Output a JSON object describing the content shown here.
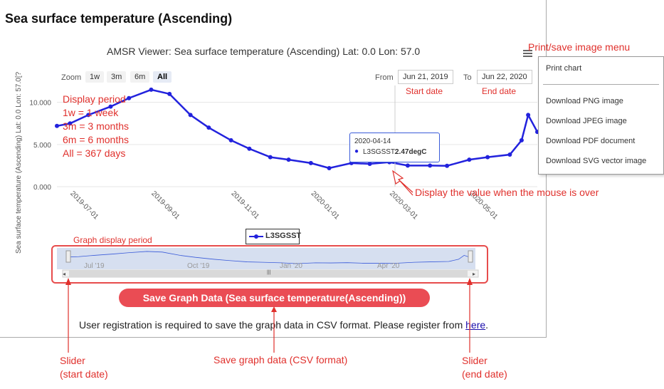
{
  "page": {
    "title": "Sea surface temperature (Ascending)"
  },
  "chart_header": {
    "title": "AMSR Viewer: Sea surface temperature (Ascending) Lat: 0.0 Lon: 57.0",
    "ylabel": "Sea surface temperature (Ascending) Lat: 0.0 Lon: 57.0[?"
  },
  "zoom": {
    "label": "Zoom",
    "buttons": [
      "1w",
      "3m",
      "6m",
      "All"
    ],
    "active": "All"
  },
  "range": {
    "from_label": "From",
    "from_value": "Jun 21, 2019",
    "to_label": "To",
    "to_value": "Jun 22, 2020"
  },
  "menu": {
    "items": [
      "Print chart",
      "Download PNG image",
      "Download JPEG image",
      "Download PDF document",
      "Download SVG vector image"
    ]
  },
  "tooltip": {
    "date": "2020-04-14",
    "series": "L3SGSST:",
    "value": "2.47degC"
  },
  "legend": {
    "series_name": "L3SGSST"
  },
  "navigator": {
    "labels": [
      "Jul '19",
      "Oct '19",
      "Jan '20",
      "Apr '20"
    ],
    "scroll_grip": "|||"
  },
  "save_button": {
    "label": "Save Graph Data (Sea surface temperature(Ascending))"
  },
  "registration": {
    "text": "User registration is required to save the graph data in CSV format. Please register from ",
    "link": "here",
    "suffix": "."
  },
  "annotations": {
    "menu": "Print/save image menu",
    "start_date": "Start date",
    "end_date": "End date",
    "period_lines": [
      "Display period",
      "1w = 1 week",
      "3m = 3 months",
      "6m = 6 months",
      "All = 367 days"
    ],
    "mouse_over": "Display the value when the mouse is over",
    "graph_period": "Graph display period",
    "slider_start_1": "Slider",
    "slider_start_2": "(start date)",
    "save_csv": "Save graph data (CSV format)",
    "slider_end_1": "Slider",
    "slider_end_2": "(end date)"
  },
  "chart_data": {
    "type": "line",
    "series": [
      {
        "name": "L3SGSST",
        "x": [
          "2019-06-21",
          "2019-07-01",
          "2019-07-15",
          "2019-08-01",
          "2019-08-15",
          "2019-09-01",
          "2019-09-15",
          "2019-10-01",
          "2019-10-15",
          "2019-11-01",
          "2019-11-15",
          "2019-12-01",
          "2019-12-15",
          "2020-01-01",
          "2020-01-15",
          "2020-02-01",
          "2020-02-15",
          "2020-03-01",
          "2020-03-15",
          "2020-04-01",
          "2020-04-14",
          "2020-05-01",
          "2020-05-15",
          "2020-06-01",
          "2020-06-10",
          "2020-06-15",
          "2020-06-22"
        ],
        "y": [
          7.2,
          7.5,
          8.5,
          9.5,
          10.5,
          11.5,
          11.0,
          8.5,
          7.0,
          5.5,
          4.5,
          3.5,
          3.2,
          2.8,
          2.2,
          2.8,
          2.7,
          2.9,
          2.5,
          2.5,
          2.47,
          3.2,
          3.5,
          3.8,
          5.5,
          8.5,
          6.5
        ]
      }
    ],
    "yticks": [
      "0.000",
      "5.000",
      "10.000"
    ],
    "ylim": [
      0,
      12
    ],
    "xticks": [
      "2019-07-01",
      "2019-09-01",
      "2019-11-01",
      "2020-01-01",
      "2020-03-01",
      "2020-05-01"
    ],
    "tick_values": [
      0,
      5,
      10
    ]
  }
}
